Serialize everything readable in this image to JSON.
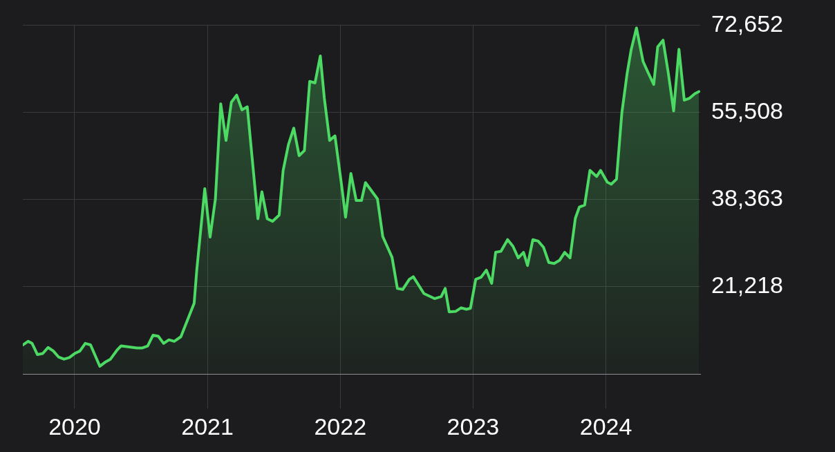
{
  "chart_data": {
    "type": "area",
    "color": "#4cd964",
    "grid": true,
    "x": [
      2019.61,
      2019.65,
      2019.68,
      2019.72,
      2019.76,
      2019.8,
      2019.84,
      2019.88,
      2019.92,
      2019.96,
      2020.0,
      2020.04,
      2020.08,
      2020.12,
      2020.19,
      2020.23,
      2020.27,
      2020.32,
      2020.35,
      2020.47,
      2020.51,
      2020.55,
      2020.59,
      2020.63,
      2020.67,
      2020.71,
      2020.75,
      2020.8,
      2020.9,
      2020.92,
      2020.98,
      2021.02,
      2021.06,
      2021.1,
      2021.14,
      2021.18,
      2021.22,
      2021.26,
      2021.3,
      2021.38,
      2021.41,
      2021.45,
      2021.49,
      2021.54,
      2021.57,
      2021.61,
      2021.65,
      2021.69,
      2021.73,
      2021.77,
      2021.81,
      2021.85,
      2021.88,
      2021.92,
      2021.96,
      2022.01,
      2022.04,
      2022.08,
      2022.12,
      2022.16,
      2022.19,
      2022.28,
      2022.32,
      2022.39,
      2022.43,
      2022.47,
      2022.52,
      2022.55,
      2022.63,
      2022.71,
      2022.76,
      2022.79,
      2022.82,
      2022.87,
      2022.91,
      2022.95,
      2022.98,
      2023.02,
      2023.06,
      2023.1,
      2023.14,
      2023.17,
      2023.21,
      2023.26,
      2023.3,
      2023.34,
      2023.38,
      2023.41,
      2023.45,
      2023.49,
      2023.53,
      2023.57,
      2023.61,
      2023.65,
      2023.69,
      2023.73,
      2023.77,
      2023.8,
      2023.84,
      2023.88,
      2023.93,
      2023.96,
      2024.01,
      2024.04,
      2024.08,
      2024.12,
      2024.16,
      2024.19,
      2024.23,
      2024.28,
      2024.32,
      2024.36,
      2024.39,
      2024.43,
      2024.47,
      2024.51,
      2024.55,
      2024.59,
      2024.63,
      2024.67,
      2024.7
    ],
    "values": [
      9800,
      10500,
      10100,
      7900,
      8100,
      9300,
      8600,
      7400,
      7000,
      7300,
      8100,
      8600,
      10100,
      9800,
      5600,
      6400,
      7000,
      8800,
      9600,
      9200,
      9200,
      9600,
      11700,
      11500,
      10100,
      10800,
      10500,
      11400,
      18000,
      24600,
      40500,
      31000,
      38500,
      57200,
      50000,
      57500,
      58900,
      56000,
      56600,
      34600,
      39900,
      34600,
      34100,
      35300,
      44100,
      49200,
      52400,
      47000,
      48000,
      61600,
      61300,
      66600,
      58300,
      50000,
      50900,
      41200,
      34900,
      43500,
      38200,
      38200,
      41700,
      38500,
      31100,
      27000,
      20900,
      20700,
      22700,
      23200,
      19900,
      18900,
      19300,
      20900,
      16300,
      16400,
      17100,
      16800,
      17000,
      22700,
      23100,
      24500,
      21900,
      28000,
      28200,
      30500,
      29200,
      26900,
      28000,
      25400,
      30500,
      30200,
      29000,
      26000,
      25800,
      26400,
      28000,
      26900,
      34700,
      36900,
      37300,
      44100,
      42900,
      44100,
      41800,
      41400,
      42400,
      55400,
      63200,
      67800,
      72100,
      65500,
      63200,
      61000,
      68400,
      69700,
      63200,
      55800,
      67900,
      57900,
      58300,
      59200,
      59600
    ],
    "xlim": [
      2019.61,
      2024.71
    ],
    "xticks": [
      2020,
      2021,
      2022,
      2023,
      2024
    ],
    "ylim": [
      4073,
      72652
    ],
    "yticks": [
      {
        "value": 21218,
        "label": "21,218"
      },
      {
        "value": 38363,
        "label": "38,363"
      },
      {
        "value": 55508,
        "label": "55,508"
      },
      {
        "value": 72652,
        "label": "72,652"
      }
    ]
  }
}
